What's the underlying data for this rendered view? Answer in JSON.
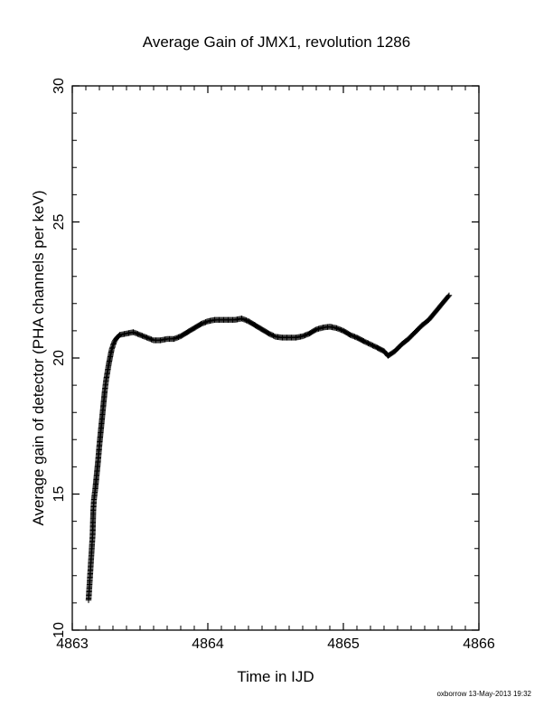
{
  "chart_data": {
    "type": "scatter",
    "marker": "plus",
    "title": "Average Gain of JMX1, revolution 1286",
    "xlabel": "Time in IJD",
    "ylabel": "Average gain of detector (PHA channels per keV)",
    "xlim": [
      4863,
      4866
    ],
    "ylim": [
      10,
      30
    ],
    "x_ticks": [
      4863,
      4864,
      4865,
      4866
    ],
    "x_tick_labels": [
      "4863",
      "4864",
      "4865",
      "4866"
    ],
    "y_ticks": [
      10,
      15,
      20,
      25,
      30
    ],
    "y_tick_labels": [
      "10",
      "15",
      "20",
      "25",
      "30"
    ],
    "grid": false,
    "legend": "none",
    "series": [
      {
        "points": [
          [
            4863.12,
            11.1
          ],
          [
            4863.125,
            11.5
          ],
          [
            4863.13,
            11.9
          ],
          [
            4863.135,
            12.3
          ],
          [
            4863.14,
            12.7
          ],
          [
            4863.145,
            13.1
          ],
          [
            4863.15,
            13.5
          ],
          [
            4863.155,
            14.4
          ],
          [
            4863.16,
            14.8
          ],
          [
            4863.17,
            15.2
          ],
          [
            4863.18,
            15.7
          ],
          [
            4863.19,
            16.2
          ],
          [
            4863.2,
            16.8
          ],
          [
            4863.21,
            17.3
          ],
          [
            4863.22,
            17.8
          ],
          [
            4863.23,
            18.3
          ],
          [
            4863.24,
            18.8
          ],
          [
            4863.25,
            19.2
          ],
          [
            4863.27,
            19.8
          ],
          [
            4863.29,
            20.3
          ],
          [
            4863.31,
            20.6
          ],
          [
            4863.33,
            20.75
          ],
          [
            4863.35,
            20.85
          ],
          [
            4863.4,
            20.9
          ],
          [
            4863.45,
            20.95
          ],
          [
            4863.5,
            20.85
          ],
          [
            4863.55,
            20.75
          ],
          [
            4863.6,
            20.65
          ],
          [
            4863.65,
            20.65
          ],
          [
            4863.7,
            20.7
          ],
          [
            4863.75,
            20.7
          ],
          [
            4863.8,
            20.8
          ],
          [
            4863.85,
            20.95
          ],
          [
            4863.9,
            21.1
          ],
          [
            4863.95,
            21.25
          ],
          [
            4864.0,
            21.35
          ],
          [
            4864.05,
            21.4
          ],
          [
            4864.1,
            21.4
          ],
          [
            4864.15,
            21.4
          ],
          [
            4864.2,
            21.4
          ],
          [
            4864.25,
            21.45
          ],
          [
            4864.3,
            21.35
          ],
          [
            4864.35,
            21.2
          ],
          [
            4864.4,
            21.05
          ],
          [
            4864.45,
            20.9
          ],
          [
            4864.5,
            20.78
          ],
          [
            4864.55,
            20.75
          ],
          [
            4864.6,
            20.75
          ],
          [
            4864.65,
            20.75
          ],
          [
            4864.7,
            20.8
          ],
          [
            4864.75,
            20.9
          ],
          [
            4864.8,
            21.05
          ],
          [
            4864.85,
            21.12
          ],
          [
            4864.9,
            21.15
          ],
          [
            4864.95,
            21.1
          ],
          [
            4865.0,
            21.0
          ],
          [
            4865.05,
            20.85
          ],
          [
            4865.1,
            20.75
          ],
          [
            4865.15,
            20.62
          ],
          [
            4865.2,
            20.5
          ],
          [
            4865.25,
            20.38
          ],
          [
            4865.3,
            20.25
          ],
          [
            4865.33,
            20.08
          ],
          [
            4865.38,
            20.25
          ],
          [
            4865.43,
            20.5
          ],
          [
            4865.48,
            20.7
          ],
          [
            4865.53,
            20.95
          ],
          [
            4865.58,
            21.2
          ],
          [
            4865.63,
            21.4
          ],
          [
            4865.68,
            21.7
          ],
          [
            4865.73,
            22.0
          ],
          [
            4865.78,
            22.3
          ]
        ]
      }
    ],
    "footer": "oxborrow 13-May-2013 19:32"
  }
}
